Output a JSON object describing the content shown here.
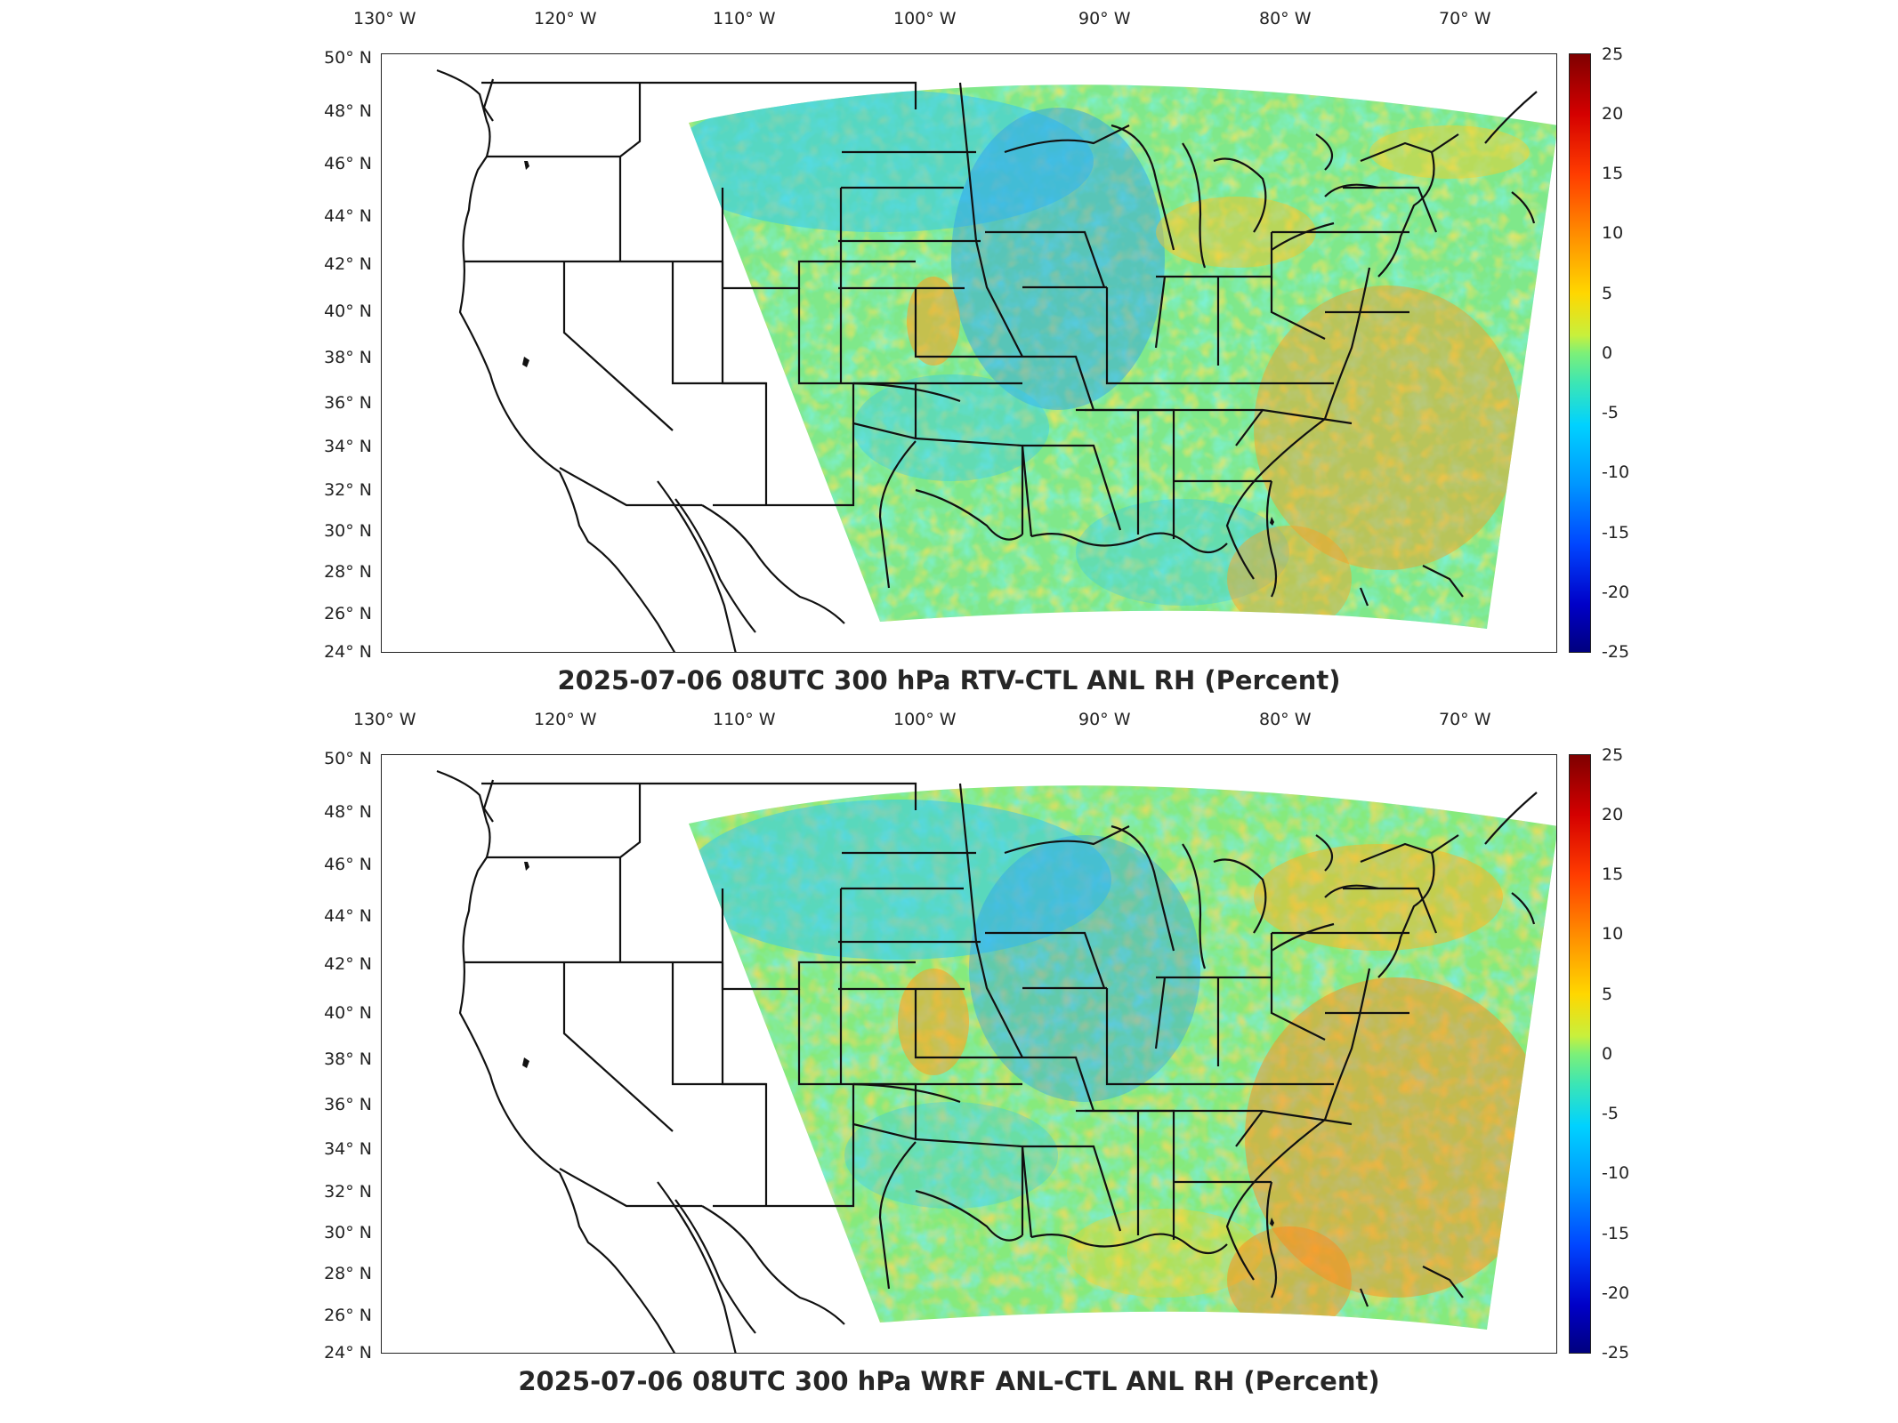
{
  "panels": [
    {
      "title": "2025-07-06 08UTC 300 hPa RTV-CTL ANL RH (Percent)",
      "lon_ticks": [
        "130° W",
        "120° W",
        "110° W",
        "100° W",
        "90° W",
        "80° W",
        "70° W"
      ],
      "lat_ticks": [
        "50° N",
        "48° N",
        "46° N",
        "44° N",
        "42° N",
        "40° N",
        "38° N",
        "36° N",
        "34° N",
        "32° N",
        "30° N",
        "28° N",
        "26° N",
        "24° N"
      ],
      "colorbar_ticks": [
        "25",
        "20",
        "15",
        "10",
        "5",
        "0",
        "-5",
        "-10",
        "-15",
        "-20",
        "-25"
      ]
    },
    {
      "title": "2025-07-06 08UTC 300 hPa WRF ANL-CTL ANL RH (Percent)",
      "lon_ticks": [
        "130° W",
        "120° W",
        "110° W",
        "100° W",
        "90° W",
        "80° W",
        "70° W"
      ],
      "lat_ticks": [
        "50° N",
        "48° N",
        "46° N",
        "44° N",
        "42° N",
        "40° N",
        "38° N",
        "36° N",
        "34° N",
        "32° N",
        "30° N",
        "28° N",
        "26° N",
        "24° N"
      ],
      "colorbar_ticks": [
        "25",
        "20",
        "15",
        "10",
        "5",
        "0",
        "-5",
        "-10",
        "-15",
        "-20",
        "-25"
      ]
    }
  ],
  "map": {
    "projection": "lambert-conformal",
    "lon_range": [
      -131,
      -65
    ],
    "lat_range": [
      24,
      50
    ],
    "colormap": "jet",
    "color_range": [
      -25,
      25
    ]
  }
}
